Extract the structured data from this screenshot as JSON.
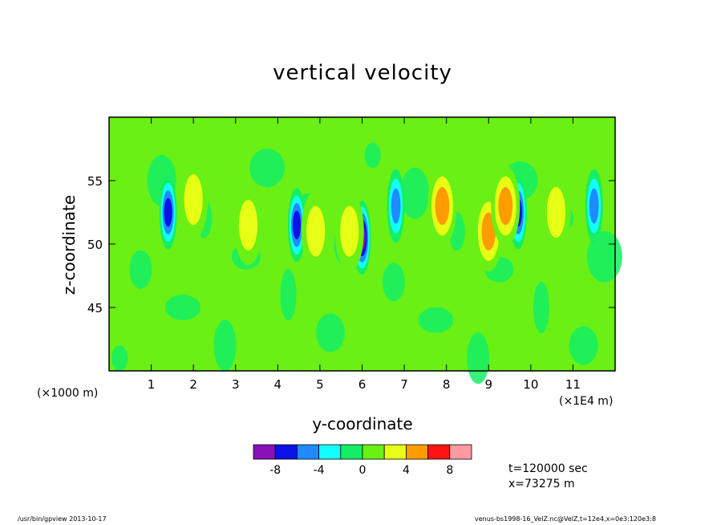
{
  "chart_data": {
    "type": "heatmap",
    "title": "vertical velocity",
    "xlabel": "y-coordinate",
    "ylabel": "z-coordinate",
    "x_unit_left": "(×1000 m)",
    "x_unit_right": "(×1E4 m)",
    "x_ticks": [
      "1",
      "2",
      "3",
      "4",
      "5",
      "6",
      "7",
      "8",
      "9",
      "10",
      "11"
    ],
    "y_ticks": [
      "45",
      "50",
      "55"
    ],
    "x_tick_values": [
      1,
      2,
      3,
      4,
      5,
      6,
      7,
      8,
      9,
      10,
      11
    ],
    "y_tick_values": [
      45,
      50,
      55
    ],
    "xlim": [
      0,
      12
    ],
    "ylim": [
      40,
      60
    ],
    "colorbar": {
      "tick_labels": [
        "-8",
        "-4",
        "0",
        "4",
        "8"
      ],
      "tick_values": [
        -8,
        -4,
        0,
        4,
        8
      ],
      "levels": [
        -10,
        -8,
        -6,
        -4,
        -2,
        0,
        2,
        4,
        6,
        8,
        10
      ],
      "colors": [
        "#8a10b8",
        "#0a14e6",
        "#1e8cff",
        "#14ffff",
        "#14ee64",
        "#6af014",
        "#e6ff14",
        "#ff9c00",
        "#ff1414",
        "#ff9aa0"
      ]
    },
    "features": [
      {
        "y": 1.4,
        "z": 52.5,
        "w": -7
      },
      {
        "y": 4.45,
        "z": 51.5,
        "w": -7
      },
      {
        "y": 6.0,
        "z": 50.5,
        "w": -9
      },
      {
        "y": 6.8,
        "z": 53.0,
        "w": -6
      },
      {
        "y": 9.7,
        "z": 52.5,
        "w": -7
      },
      {
        "y": 11.5,
        "z": 53.0,
        "w": -5
      },
      {
        "y": 2.0,
        "z": 53.5,
        "w": 3.5
      },
      {
        "y": 3.3,
        "z": 51.5,
        "w": 3.5
      },
      {
        "y": 4.9,
        "z": 51.0,
        "w": 3
      },
      {
        "y": 5.7,
        "z": 51.0,
        "w": 3
      },
      {
        "y": 7.9,
        "z": 53.0,
        "w": 5
      },
      {
        "y": 9.0,
        "z": 51.0,
        "w": 5
      },
      {
        "y": 9.4,
        "z": 53.0,
        "w": 6
      },
      {
        "y": 10.6,
        "z": 52.5,
        "w": 3.5
      }
    ]
  },
  "info": {
    "time": "t=120000 sec",
    "position": "x=73275 m"
  },
  "footer": {
    "left": "/usr/bin/gpview   2013-10-17",
    "right": "venus-bs1998-16_VelZ.nc@VelZ,t=12e4,x=0e3:120e3:8"
  }
}
